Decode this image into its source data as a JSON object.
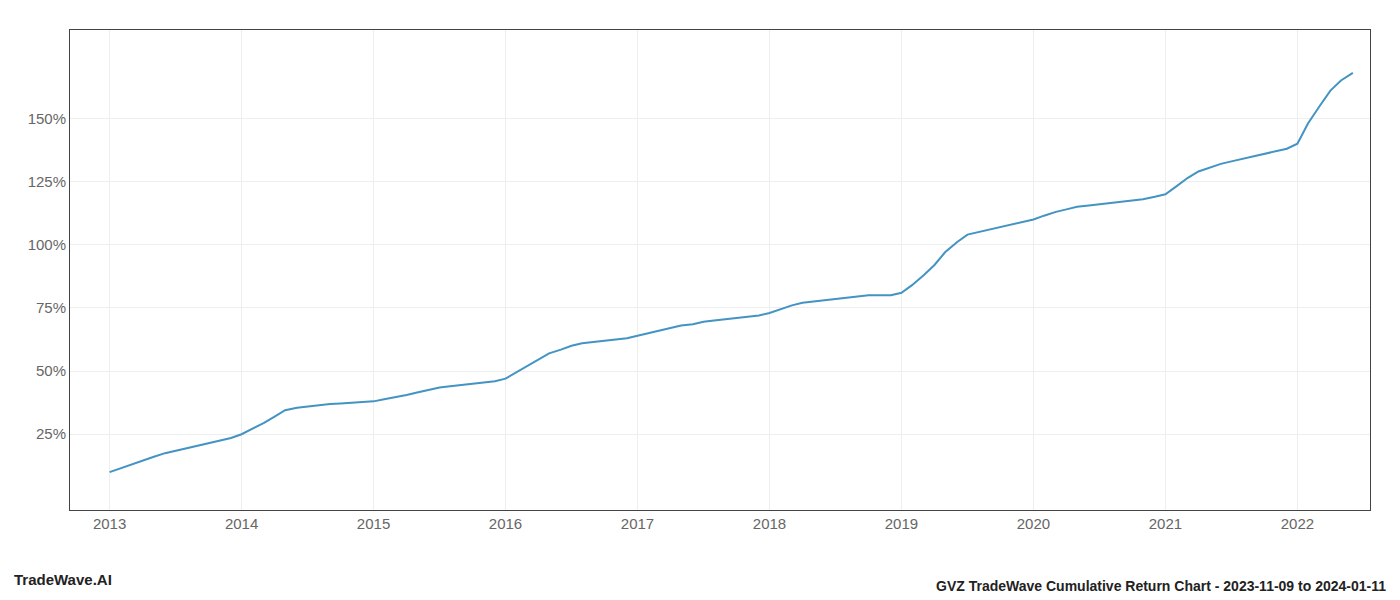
{
  "chart_data": {
    "type": "line",
    "title": "GVZ TradeWave Cumulative Return Chart - 2023-11-09 to 2024-01-11",
    "annotations": [
      "TradeWave.AI"
    ],
    "color": "#4393c3",
    "grid": true,
    "x": [
      2013.0,
      2013.08,
      2013.17,
      2013.25,
      2013.33,
      2013.42,
      2013.5,
      2013.58,
      2013.67,
      2013.75,
      2013.83,
      2013.92,
      2014.0,
      2014.08,
      2014.17,
      2014.25,
      2014.33,
      2014.42,
      2014.5,
      2014.58,
      2014.67,
      2014.75,
      2014.83,
      2014.92,
      2015.0,
      2015.08,
      2015.17,
      2015.25,
      2015.33,
      2015.42,
      2015.5,
      2015.58,
      2015.67,
      2015.75,
      2015.83,
      2015.92,
      2016.0,
      2016.08,
      2016.17,
      2016.25,
      2016.33,
      2016.42,
      2016.5,
      2016.58,
      2016.67,
      2016.75,
      2016.83,
      2016.92,
      2017.0,
      2017.08,
      2017.17,
      2017.25,
      2017.33,
      2017.42,
      2017.5,
      2017.58,
      2017.67,
      2017.75,
      2017.83,
      2017.92,
      2018.0,
      2018.08,
      2018.17,
      2018.25,
      2018.33,
      2018.42,
      2018.5,
      2018.58,
      2018.67,
      2018.75,
      2018.83,
      2018.92,
      2019.0,
      2019.08,
      2019.17,
      2019.25,
      2019.33,
      2019.42,
      2019.5,
      2019.58,
      2019.67,
      2019.75,
      2019.83,
      2019.92,
      2020.0,
      2020.08,
      2020.17,
      2020.25,
      2020.33,
      2020.42,
      2020.5,
      2020.58,
      2020.67,
      2020.75,
      2020.83,
      2020.92,
      2021.0,
      2021.08,
      2021.17,
      2021.25,
      2021.33,
      2021.42,
      2021.5,
      2021.58,
      2021.67,
      2021.75,
      2021.83,
      2021.92,
      2022.0,
      2022.08,
      2022.17,
      2022.25,
      2022.33,
      2022.42
    ],
    "values": [
      10.0,
      11.5,
      13.0,
      14.5,
      16.0,
      17.5,
      18.5,
      19.5,
      20.5,
      21.5,
      22.5,
      23.5,
      25.0,
      27.0,
      29.5,
      32.0,
      34.5,
      35.5,
      36.0,
      36.5,
      37.0,
      37.2,
      37.4,
      37.6,
      38.0,
      38.8,
      39.6,
      40.5,
      41.5,
      42.5,
      43.5,
      44.0,
      44.5,
      45.0,
      45.5,
      46.0,
      47.0,
      49.5,
      52.0,
      54.5,
      57.0,
      58.5,
      60.0,
      61.0,
      61.5,
      62.0,
      62.5,
      63.0,
      64.0,
      65.0,
      66.0,
      67.0,
      68.0,
      68.5,
      69.5,
      70.0,
      70.5,
      71.0,
      71.5,
      72.0,
      73.0,
      74.5,
      76.0,
      77.0,
      77.5,
      78.0,
      78.5,
      79.0,
      79.5,
      80.0,
      80.0,
      80.0,
      81.0,
      84.0,
      88.0,
      92.0,
      97.0,
      101.0,
      104.0,
      105.0,
      106.0,
      107.0,
      108.0,
      109.0,
      110.0,
      111.5,
      113.0,
      114.0,
      115.0,
      115.5,
      116.0,
      116.5,
      117.0,
      117.5,
      118.0,
      119.0,
      120.0,
      123.0,
      126.5,
      129.0,
      130.5,
      132.0,
      133.0,
      134.0,
      135.0,
      136.0,
      137.0,
      138.0,
      140.0,
      148.0,
      155.0,
      161.0,
      165.0,
      168.0
    ],
    "xlim": [
      2012.7,
      2022.55
    ],
    "xticks": [
      2013,
      2014,
      2015,
      2016,
      2017,
      2018,
      2019,
      2020,
      2021,
      2022
    ],
    "ylim": [
      -5,
      185
    ],
    "yticks": [
      {
        "value": 25,
        "label": "25%"
      },
      {
        "value": 50,
        "label": "50%"
      },
      {
        "value": 75,
        "label": "75%"
      },
      {
        "value": 100,
        "label": "100%"
      },
      {
        "value": 125,
        "label": "125%"
      },
      {
        "value": 150,
        "label": "150%"
      }
    ]
  }
}
